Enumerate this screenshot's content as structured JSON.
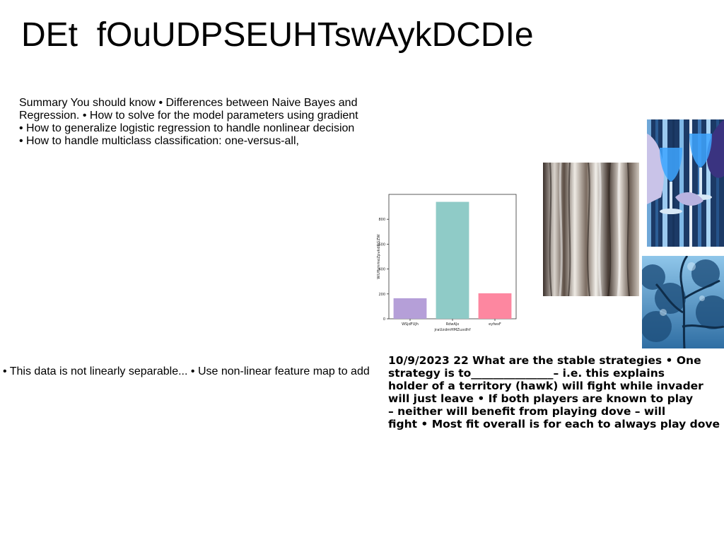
{
  "slide": {
    "title": "DEt  fOuUDPSEUHTswAykDCDIe"
  },
  "summary": {
    "lines": [
      "Summary You should know • Differences between Naive Bayes and",
      "Regression. • How to solve for the model parameters using gradient",
      "• How to generalize logistic regression to handle nonlinear decision",
      "• How to handle multiclass classification: one-versus-all,"
    ]
  },
  "bullets": {
    "line": "• This data is not linearly separable... • Use non-linear feature map to add"
  },
  "strategies": {
    "lines": [
      "10/9/2023 22 What are the stable strategies • One",
      "strategy is to_______________– i.e. this explains",
      "holder of a territory (hawk) will fight while invader",
      "will just leave • If both players are known to play",
      "– neither will benefit from playing dove – will",
      "fight • Most fit overall is for each to always play dove"
    ]
  },
  "chart_data": {
    "type": "bar",
    "categories": [
      "WSjdFUJh",
      "RdwAJx",
      "eyfwxF"
    ],
    "values": [
      165,
      940,
      205
    ],
    "colors": [
      "#b59fd8",
      "#8fcbc7",
      "#fd87a0"
    ],
    "title": "",
    "xlabel": "jraUzdmHMZuxdhf",
    "ylabel": "WUfhmmoZpvkdRGZW",
    "ylim": [
      0,
      1000
    ],
    "yticks": [
      0,
      200,
      400,
      600,
      800
    ],
    "grid": false
  },
  "images": {
    "bark": "bark-texture-photo",
    "glasses": "blue-wine-glasses-photo",
    "tree": "blue-tree-photo"
  }
}
